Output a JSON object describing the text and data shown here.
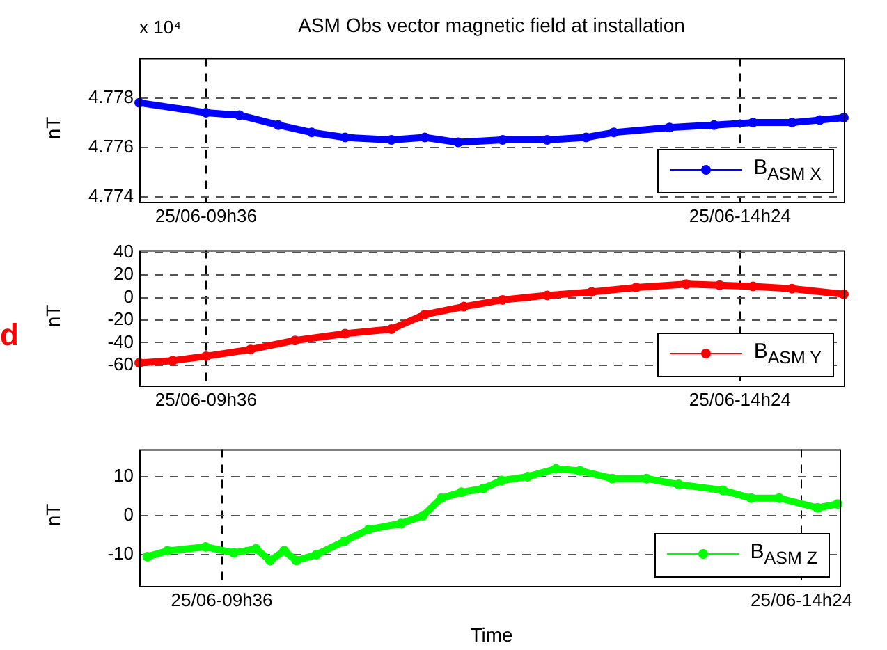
{
  "chart_data": [
    {
      "type": "line",
      "title": "ASM Obs vector magnetic field at installation",
      "ylabel": "nT",
      "annotations": [
        "x 10⁴"
      ],
      "x": [
        "--06-25T09:00",
        "--06-25T09:36",
        "--06-25T09:54",
        "--06-25T10:15",
        "--06-25T10:33",
        "--06-25T10:51",
        "--06-25T11:16",
        "--06-25T11:34",
        "--06-25T11:52",
        "--06-25T12:16",
        "--06-25T12:40",
        "--06-25T13:01",
        "--06-25T13:16",
        "--06-25T13:46",
        "--06-25T14:10",
        "--06-25T14:31",
        "--06-25T14:52",
        "--06-25T15:07",
        "--06-25T15:20"
      ],
      "series": [
        {
          "name": "B$_{ASM X}$",
          "color": "#0000ff",
          "values": [
            4.7778,
            4.7774,
            4.7773,
            4.7769,
            4.7766,
            4.7764,
            4.7763,
            4.7764,
            4.7762,
            4.7763,
            4.7763,
            4.7764,
            4.7766,
            4.7768,
            4.7769,
            4.777,
            4.777,
            4.7771,
            4.7772
          ]
        }
      ],
      "xlim": [
        "--06-25T09:00",
        "--06-25T15:20"
      ],
      "xticks": [
        {
          "value": "--06-25T09:36",
          "label": "25/06-09h36"
        },
        {
          "value": "--06-25T14:24",
          "label": "25/06-14h24"
        }
      ],
      "ylim": [
        4.7738,
        4.7796
      ],
      "yticks": [
        4.774,
        4.776,
        4.778
      ],
      "grid": true,
      "legend": "bottom right",
      "marker": "circle",
      "line_style": "solid"
    },
    {
      "type": "line",
      "ylabel": "nT",
      "annotations": [
        "d"
      ],
      "x": [
        "--06-25T09:00",
        "--06-25T09:18",
        "--06-25T09:36",
        "--06-25T10:00",
        "--06-25T10:24",
        "--06-25T10:51",
        "--06-25T11:16",
        "--06-25T11:34",
        "--06-25T11:55",
        "--06-25T12:16",
        "--06-25T12:40",
        "--06-25T13:04",
        "--06-25T13:28",
        "--06-25T13:55",
        "--06-25T14:13",
        "--06-25T14:31",
        "--06-25T14:52",
        "--06-25T15:20"
      ],
      "series": [
        {
          "name": "B$_{ASM Y}$",
          "color": "#ff0000",
          "values": [
            -58,
            -56,
            -52,
            -46,
            -38,
            -32,
            -28,
            -15,
            -8,
            -2,
            2,
            5,
            9,
            12,
            11,
            10,
            8,
            3
          ]
        }
      ],
      "xlim": [
        "--06-25T09:00",
        "--06-25T15:20"
      ],
      "xticks": [
        {
          "value": "--06-25T09:36",
          "label": "25/06-09h36"
        },
        {
          "value": "--06-25T14:24",
          "label": "25/06-14h24"
        }
      ],
      "ylim": [
        -78,
        42
      ],
      "yticks": [
        -60,
        -40,
        -20,
        0,
        20,
        40
      ],
      "grid": true,
      "legend": "bottom right",
      "marker": "circle",
      "line_style": "solid"
    },
    {
      "type": "line",
      "ylabel": "nT",
      "xlabel": "Time",
      "x": [
        "--06-25T08:59",
        "--06-25T09:09",
        "--06-25T09:28",
        "--06-25T09:42",
        "--06-25T09:53",
        "--06-25T10:00",
        "--06-25T10:07",
        "--06-25T10:13",
        "--06-25T10:23",
        "--06-25T10:37",
        "--06-25T10:49",
        "--06-25T11:05",
        "--06-25T11:16",
        "--06-25T11:25",
        "--06-25T11:35",
        "--06-25T11:46",
        "--06-25T11:55",
        "--06-25T12:08",
        "--06-25T12:22",
        "--06-25T12:34",
        "--06-25T12:50",
        "--06-25T13:07",
        "--06-25T13:23",
        "--06-25T13:45",
        "--06-25T13:59",
        "--06-25T14:13",
        "--06-25T14:32",
        "--06-25T14:42"
      ],
      "series": [
        {
          "name": "B$_{ASM Z}$",
          "color": "#00ff00",
          "values": [
            -10.5,
            -9,
            -8,
            -9.5,
            -8.5,
            -11.5,
            -9,
            -11.5,
            -10,
            -6.5,
            -3.5,
            -2,
            0,
            4.5,
            6,
            7,
            9,
            10,
            12,
            11.5,
            9.5,
            9.5,
            8,
            6.5,
            4.5,
            4.5,
            2,
            3
          ]
        }
      ],
      "xlim": [
        "--06-25T08:55",
        "--06-25T14:43"
      ],
      "xticks": [
        {
          "value": "--06-25T09:36",
          "label": "25/06-09h36"
        },
        {
          "value": "--06-25T14:24",
          "label": "25/06-14h24"
        }
      ],
      "ylim": [
        -18,
        17
      ],
      "yticks": [
        -10,
        0,
        10
      ],
      "grid": true,
      "legend": "bottom right",
      "marker": "circle",
      "line_style": "solid"
    }
  ]
}
